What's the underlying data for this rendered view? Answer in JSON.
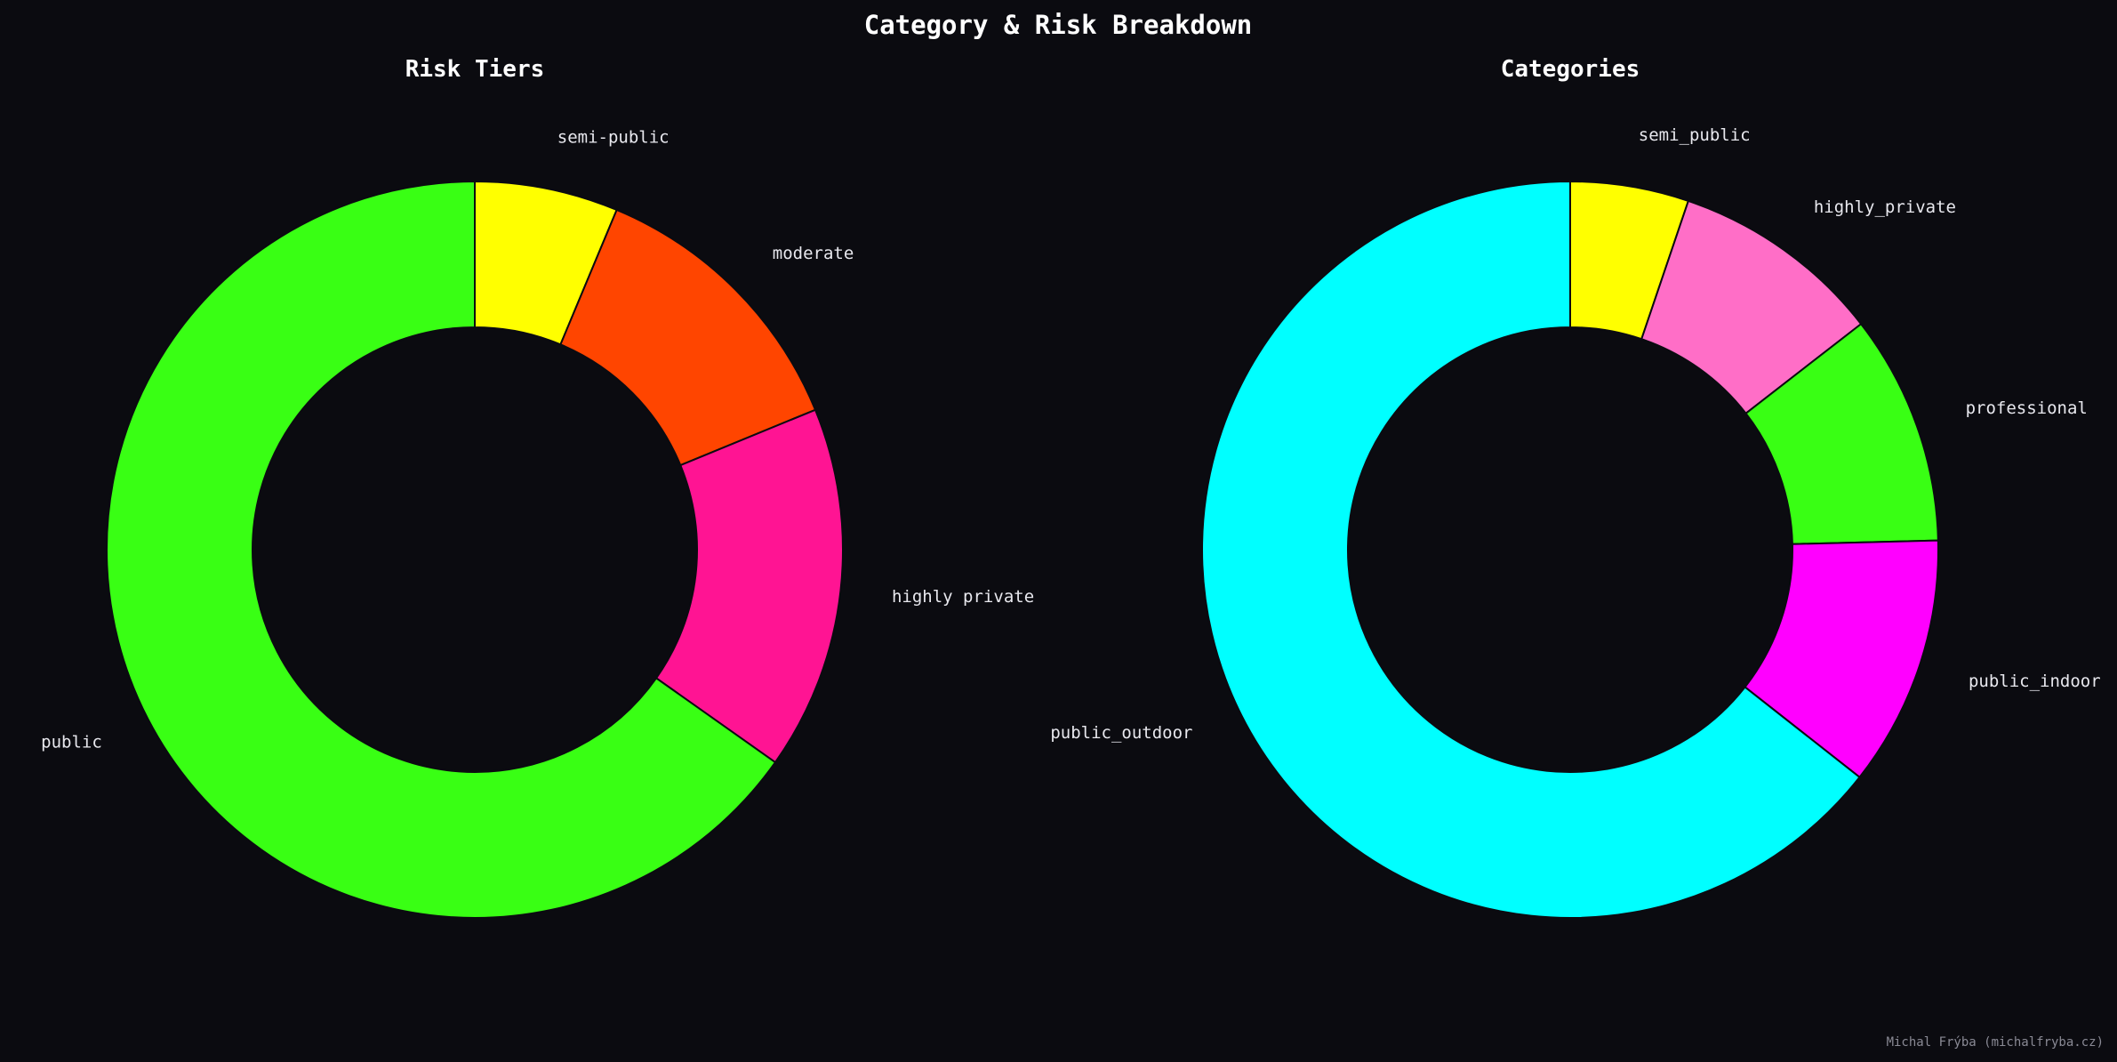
{
  "figure": {
    "title": "Category & Risk Breakdown",
    "credit": "Michal Frýba (michalfryba.cz)",
    "background": "#0b0b10"
  },
  "chart_data": [
    {
      "type": "pie",
      "title": "Risk Tiers",
      "donut": true,
      "start": "top",
      "direction": "clockwise",
      "slices": [
        {
          "label": "semi-public",
          "value": 6.3,
          "color": "#ffff00"
        },
        {
          "label": "moderate",
          "value": 12.5,
          "color": "#ff4500"
        },
        {
          "label": "highly private",
          "value": 16.0,
          "color": "#ff1493"
        },
        {
          "label": "public",
          "value": 65.2,
          "color": "#39ff14"
        }
      ]
    },
    {
      "type": "pie",
      "title": "Categories",
      "donut": true,
      "start": "top",
      "direction": "clockwise",
      "slices": [
        {
          "label": "semi_public",
          "value": 5.2,
          "color": "#ffff00"
        },
        {
          "label": "highly_private",
          "value": 9.3,
          "color": "#ff6ec7"
        },
        {
          "label": "professional",
          "value": 10.1,
          "color": "#39ff14"
        },
        {
          "label": "public_indoor",
          "value": 11.0,
          "color": "#ff00ff"
        },
        {
          "label": "public_outdoor",
          "value": 64.4,
          "color": "#00ffff"
        }
      ]
    }
  ]
}
